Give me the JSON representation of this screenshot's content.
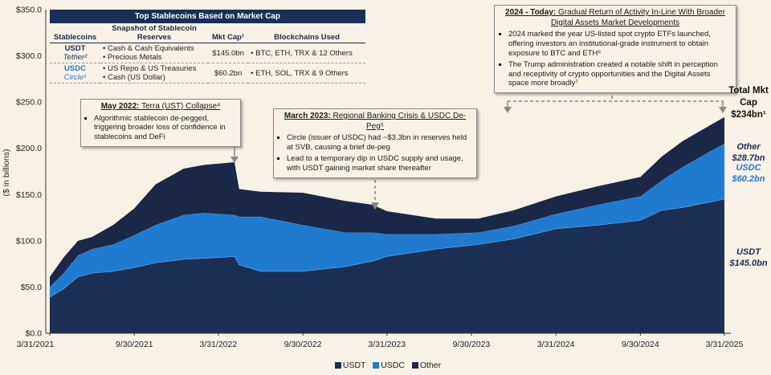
{
  "chart_data": {
    "type": "area",
    "stacked": true,
    "ylabel": "($ in billions)",
    "ylim": [
      0,
      350
    ],
    "yticks": [
      "$0.0",
      "$50.0",
      "$100.0",
      "$150.0",
      "$200.0",
      "$250.0",
      "$300.0",
      "$350.0"
    ],
    "ytick_values": [
      0,
      50,
      100,
      150,
      200,
      250,
      300,
      350
    ],
    "xticks": [
      "3/31/2021",
      "9/30/2021",
      "3/31/2022",
      "9/30/2022",
      "3/31/2023",
      "9/30/2023",
      "3/31/2024",
      "9/30/2024",
      "3/31/2025"
    ],
    "x": [
      "2021-03-31",
      "2021-04-30",
      "2021-05-31",
      "2021-06-30",
      "2021-08-15",
      "2021-09-30",
      "2021-11-15",
      "2022-01-15",
      "2022-02-28",
      "2022-05-05",
      "2022-05-15",
      "2022-06-30",
      "2022-09-30",
      "2022-12-31",
      "2023-02-28",
      "2023-03-31",
      "2023-07-15",
      "2023-10-15",
      "2023-12-31",
      "2024-03-31",
      "2024-06-30",
      "2024-09-30",
      "2024-11-15",
      "2024-12-31",
      "2025-03-31"
    ],
    "series": [
      {
        "name": "USDT",
        "color": "#1b2f55",
        "values": [
          39,
          48,
          61,
          65,
          67,
          71,
          76,
          80,
          81,
          83,
          74,
          67,
          67,
          72,
          78,
          83,
          91,
          96,
          102,
          113,
          117,
          122,
          133,
          136,
          145.0
        ]
      },
      {
        "name": "USDC",
        "color": "#1f7bd0",
        "values": [
          11,
          17,
          23,
          26,
          29,
          35,
          41,
          48,
          49,
          45,
          52,
          59,
          50,
          37,
          31,
          24,
          16,
          13,
          14,
          16,
          22,
          26,
          32,
          44,
          60.2
        ]
      },
      {
        "name": "Other",
        "color": "#1a2747",
        "values": [
          11,
          17,
          16,
          13,
          21,
          29,
          44,
          50,
          52,
          57,
          30,
          27,
          35,
          34,
          30,
          25,
          17,
          15,
          17,
          19,
          20,
          21,
          26,
          28,
          28.7
        ]
      }
    ],
    "legend_placement": "bottom",
    "grid": false
  },
  "table": {
    "title": "Top Stablecoins Based on Market Cap",
    "headers": [
      "Stablecoins",
      "Snapshot of Stablecoin Reserves",
      "Mkt Cap¹",
      "Blockchains Used"
    ],
    "rows": [
      {
        "coin": "USDT",
        "issuer": "Tether²",
        "reserves": [
          "Cash & Cash Equivalents",
          "Precious Metals"
        ],
        "mkt_cap": "$145.0bn",
        "chains": "BTC, ETH, TRX & 12 Others"
      },
      {
        "coin": "USDC",
        "issuer": "Circle³",
        "reserves": [
          "US Repo & US Treasuries",
          "Cash (US Dollar)"
        ],
        "mkt_cap": "$60.2bn",
        "chains": "ETH, SOL, TRX & 9 Others"
      }
    ]
  },
  "annotations": {
    "terra": {
      "date": "May 2022:",
      "title": " Terra (UST) Collapse⁴",
      "bullets": [
        "Algorithmic stablecoin de-pegged, triggering broader loss of confidence in stablecoins and DeFi"
      ]
    },
    "banking": {
      "date": "March 2023:",
      "title": " Regional Banking Crisis & USDC De-Peg⁵",
      "bullets": [
        "Circle (issuer of USDC) had ~$3.3bn in reserves held at SVB, causing a brief de-peg",
        "Lead to a temporary dip in USDC supply and usage, with USDT gaining market share thereafter"
      ]
    },
    "today": {
      "date": "2024 - Today:",
      "title": " Gradual Return of Activity In-Line With Broader Digital Assets Market Developments",
      "bullets": [
        "2024 marked the year US-listed spot crypto ETFs launched, offering investors an institutional-grade instrument to obtain exposure to BTC and ETH⁶",
        "The Trump administration created a notable shift in perception and receptivity of crypto opportunities and the Digital Assets space more broadly⁷"
      ]
    }
  },
  "right_labels": {
    "total": "Total Mkt Cap $234bn¹",
    "other_name": "Other",
    "other_value": "$28.7bn",
    "usdc_name": "USDC",
    "usdc_value": "$60.2bn",
    "usdt_name": "USDT",
    "usdt_value": "$145.0bn"
  },
  "legend": [
    "USDT",
    "USDC",
    "Other"
  ]
}
